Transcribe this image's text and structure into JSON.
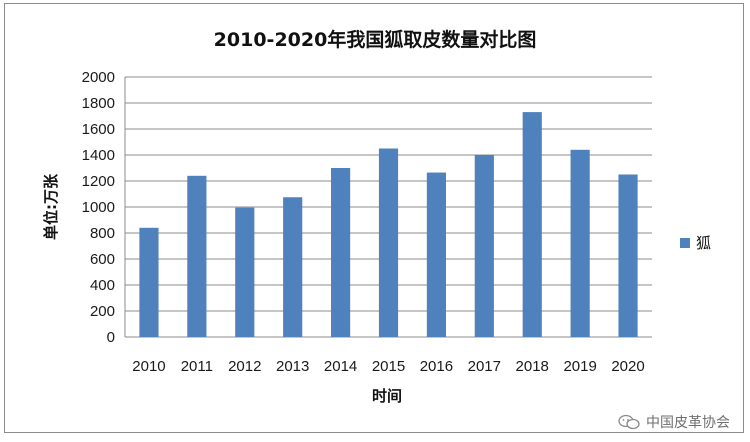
{
  "chart_data": {
    "type": "bar",
    "title": "2010-2020年我国狐取皮数量对比图",
    "xlabel": "时间",
    "ylabel": "单位:万张",
    "categories": [
      "2010",
      "2011",
      "2012",
      "2013",
      "2014",
      "2015",
      "2016",
      "2017",
      "2018",
      "2019",
      "2020"
    ],
    "series": [
      {
        "name": "狐",
        "values": [
          840,
          1240,
          995,
          1075,
          1300,
          1450,
          1265,
          1400,
          1730,
          1440,
          1250
        ],
        "color": "#4f81bd"
      }
    ],
    "ylim": [
      0,
      2000
    ],
    "yticks": [
      0,
      200,
      400,
      600,
      800,
      1000,
      1200,
      1400,
      1600,
      1800,
      2000
    ],
    "grid": true,
    "legend_position": "right"
  },
  "watermark": {
    "text": "中国皮革协会",
    "icon": "wechat-icon"
  }
}
